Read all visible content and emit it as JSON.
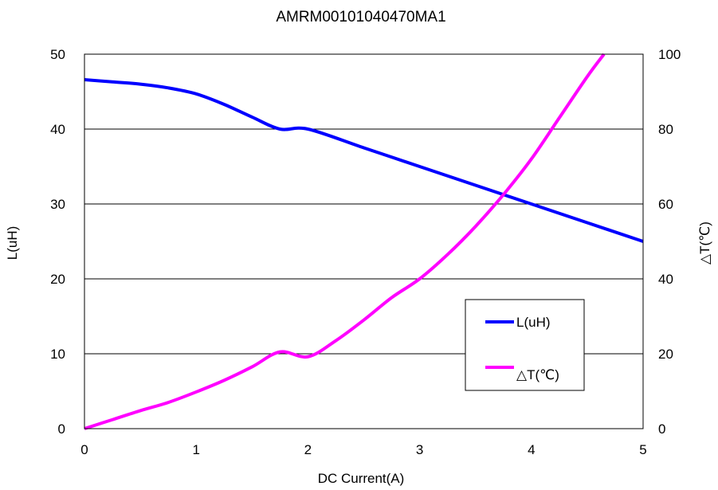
{
  "chart_data": {
    "type": "line",
    "title": "AMRM00101040470MA1",
    "xlabel": "DC Current(A)",
    "ylabel": "L(uH)",
    "y2label": "△T(℃)",
    "xlim": [
      0,
      5
    ],
    "ylim": [
      0,
      50
    ],
    "y2lim": [
      0,
      100
    ],
    "x_ticks": [
      "0",
      "1",
      "2",
      "3",
      "4",
      "5"
    ],
    "y_ticks": [
      "0",
      "10",
      "20",
      "30",
      "40",
      "50"
    ],
    "y2_ticks": [
      "0",
      "20",
      "40",
      "60",
      "80",
      "100"
    ],
    "grid": "horizontal",
    "legend_position": "lower-right",
    "series": [
      {
        "name": "L(uH)",
        "axis": "left",
        "color": "#0000ff",
        "x": [
          0,
          0.25,
          0.5,
          0.75,
          1.0,
          1.25,
          1.5,
          1.75,
          2.0,
          2.5,
          3.0,
          3.5,
          4.0,
          4.5,
          5.0
        ],
        "y": [
          46.6,
          46.3,
          46.0,
          45.5,
          44.7,
          43.3,
          41.6,
          40.0,
          40.0,
          37.5,
          35.0,
          32.5,
          30.0,
          27.5,
          25.0
        ]
      },
      {
        "name": "△T(℃)",
        "axis": "right",
        "color": "#ff00ff",
        "x": [
          0,
          0.25,
          0.5,
          0.75,
          1.0,
          1.25,
          1.5,
          1.75,
          2.0,
          2.25,
          2.5,
          2.75,
          3.0,
          3.25,
          3.5,
          3.75,
          4.0,
          4.25,
          4.5,
          4.65
        ],
        "y": [
          0,
          2.4,
          4.8,
          7.0,
          9.8,
          12.9,
          16.5,
          20.5,
          19.2,
          23.5,
          29.0,
          35.0,
          40.0,
          46.5,
          54.0,
          62.5,
          72.0,
          83.0,
          94.0,
          100.0
        ]
      }
    ]
  }
}
